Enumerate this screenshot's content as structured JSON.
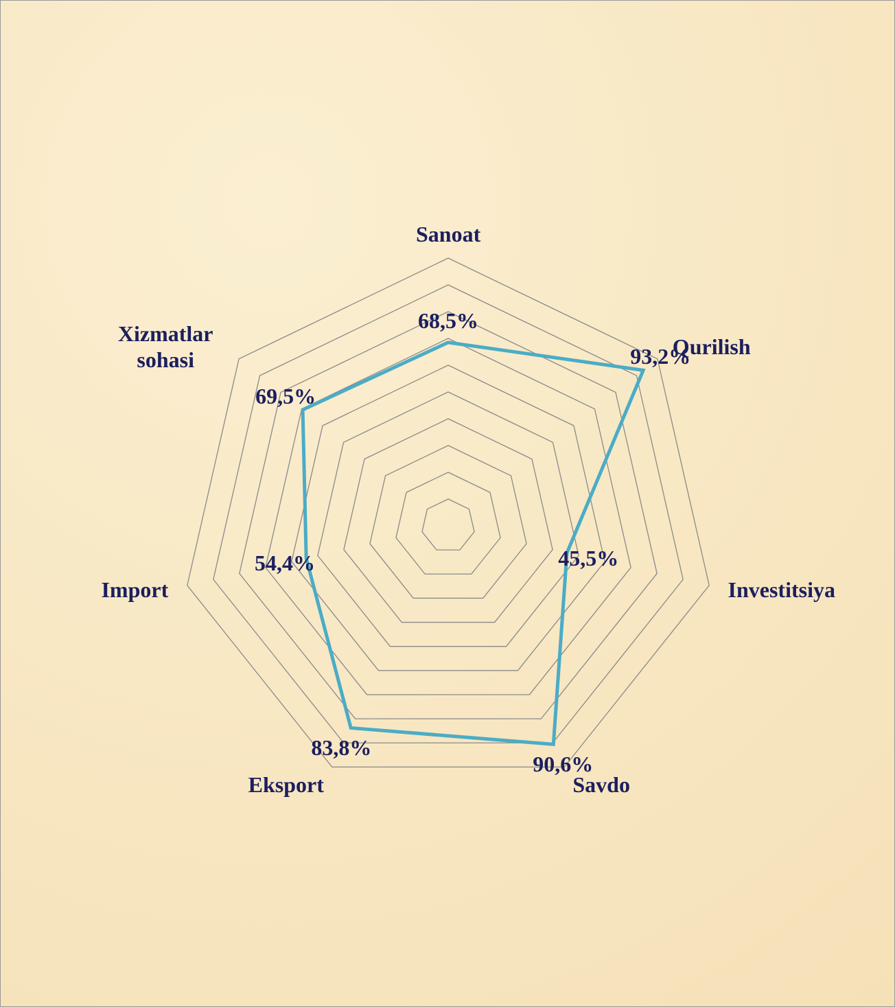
{
  "chart_data": {
    "type": "radar",
    "categories": [
      "Sanoat",
      "Qurilish",
      "Investitsiya",
      "Savdo",
      "Eksport",
      "Import",
      "Xizmatlar sohasi"
    ],
    "values": [
      68.5,
      93.2,
      45.5,
      90.6,
      83.8,
      54.4,
      69.5
    ],
    "value_labels": [
      "68,5%",
      "93,2%",
      "45,5%",
      "90,6%",
      "83,8%",
      "54,4%",
      "69,5%"
    ],
    "color": "#4bacc6",
    "ylim": [
      0,
      100
    ],
    "yticks": [
      10,
      20,
      30,
      40,
      50,
      60,
      70,
      80,
      90,
      100
    ],
    "grid": true
  }
}
